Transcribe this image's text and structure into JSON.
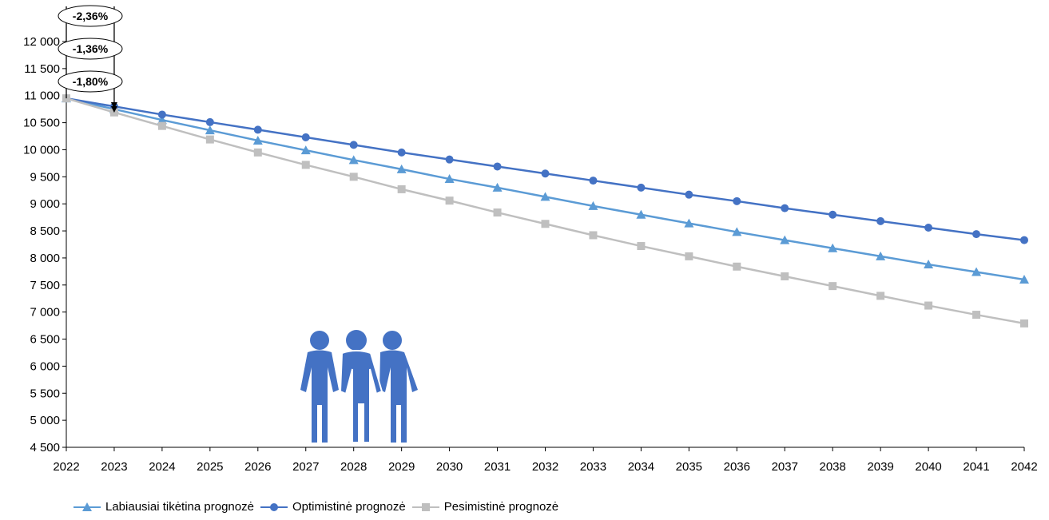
{
  "chart_data": {
    "type": "line",
    "x": [
      "2022",
      "2023",
      "2024",
      "2025",
      "2026",
      "2027",
      "2028",
      "2029",
      "2030",
      "2031",
      "2032",
      "2033",
      "2034",
      "2035",
      "2036",
      "2037",
      "2038",
      "2039",
      "2040",
      "2041",
      "2042"
    ],
    "ylim": [
      4500,
      12000
    ],
    "yticks": [
      4500,
      5000,
      5500,
      6000,
      6500,
      7000,
      7500,
      8000,
      8500,
      9000,
      9500,
      10000,
      10500,
      11000,
      11500,
      12000
    ],
    "ytick_labels": [
      "4 500",
      "5 000",
      "5 500",
      "6 000",
      "6 500",
      "7 000",
      "7 500",
      "8 000",
      "8 500",
      "9 000",
      "9 500",
      "10 000",
      "10 500",
      "11 000",
      "11 500",
      "12 000"
    ],
    "series": [
      {
        "name": "Labiausiai tikėtina prognozė",
        "color": "#5B9BD5",
        "marker": "triangle",
        "values": [
          10950,
          10750,
          10550,
          10360,
          10170,
          9990,
          9810,
          9640,
          9460,
          9300,
          9130,
          8960,
          8800,
          8640,
          8480,
          8330,
          8180,
          8030,
          7880,
          7740,
          7600
        ]
      },
      {
        "name": "Optimistinė prognozė",
        "color": "#4472C4",
        "marker": "circle",
        "values": [
          10950,
          10800,
          10650,
          10510,
          10370,
          10230,
          10090,
          9950,
          9820,
          9690,
          9560,
          9430,
          9300,
          9170,
          9050,
          8920,
          8800,
          8680,
          8560,
          8440,
          8330
        ]
      },
      {
        "name": "Pesimistinė prognozė",
        "color": "#BFBFBF",
        "marker": "square",
        "values": [
          10950,
          10690,
          10440,
          10190,
          9950,
          9720,
          9500,
          9270,
          9060,
          8840,
          8630,
          8420,
          8220,
          8030,
          7840,
          7660,
          7480,
          7300,
          7120,
          6950,
          6790
        ]
      }
    ],
    "annotations": [
      {
        "text": "-2,36%"
      },
      {
        "text": "-1,36%"
      },
      {
        "text": "-1,80%"
      }
    ],
    "legend_placement": "bottom-left",
    "grid": false,
    "icon": "people-group-icon",
    "icon_color": "#4472C4"
  }
}
